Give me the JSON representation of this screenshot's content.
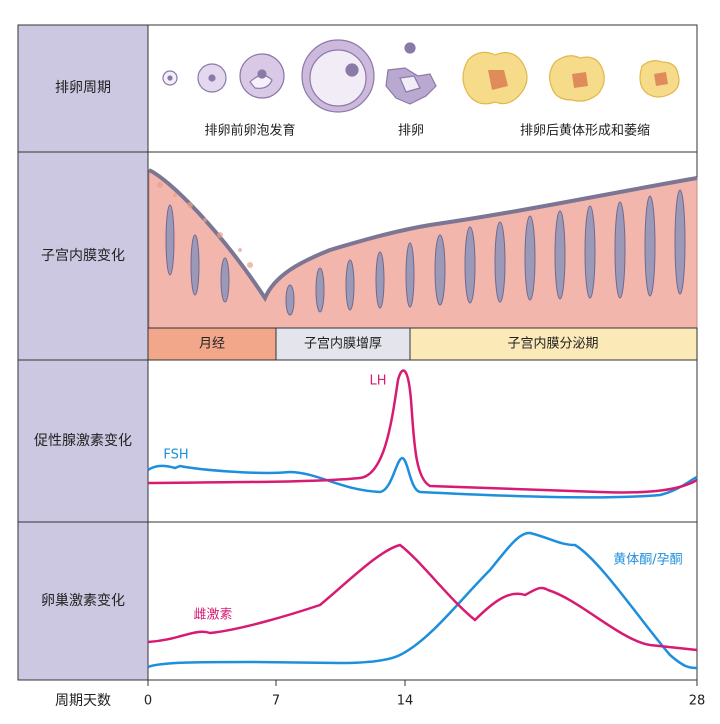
{
  "row_labels": [
    "排卵周期",
    "子宫内膜变化",
    "促性腺激素变化",
    "卵巢激素变化"
  ],
  "ovulation_labels": [
    "排卵前卵泡发育",
    "排卵",
    "排卵后黄体形成和萎缩"
  ],
  "endometrium_phases": [
    "月经",
    "子宫内膜增厚",
    "子宫内膜分泌期"
  ],
  "hormone_labels": {
    "lh": "LH",
    "fsh": "FSH",
    "estrogen": "雌激素",
    "progesterone": "黄体酮/孕酮"
  },
  "axis": {
    "label": "周期天数",
    "ticks": [
      0,
      7,
      14,
      28
    ]
  }
}
